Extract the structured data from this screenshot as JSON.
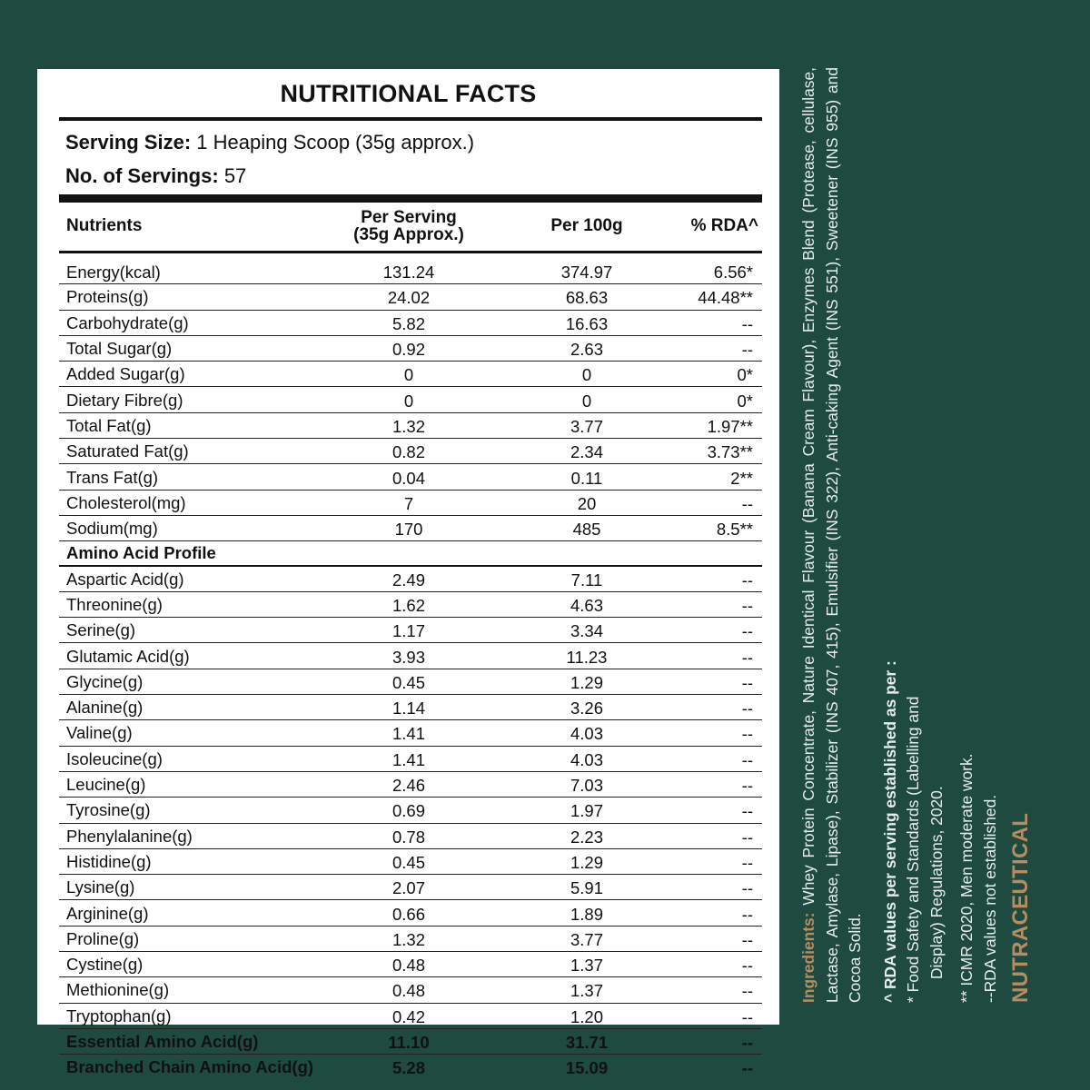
{
  "title": "NUTRITIONAL FACTS",
  "serving_size": {
    "label": "Serving Size:",
    "value": "1 Heaping Scoop (35g approx.)"
  },
  "servings": {
    "label": "No. of Servings:",
    "value": "57"
  },
  "headers": [
    "Nutrients",
    "Per Serving\n(35g Approx.)",
    "Per 100g",
    "% RDA^"
  ],
  "header_per_serving_line1": "Per Serving",
  "header_per_serving_line2": "(35g Approx.)",
  "rows": [
    [
      "Energy(kcal)",
      "131.24",
      "374.97",
      "6.56*"
    ],
    [
      "Proteins(g)",
      "24.02",
      "68.63",
      "44.48**"
    ],
    [
      "Carbohydrate(g)",
      "5.82",
      "16.63",
      "--"
    ],
    [
      "Total Sugar(g)",
      "0.92",
      "2.63",
      "--"
    ],
    [
      "Added Sugar(g)",
      "0",
      "0",
      "0*"
    ],
    [
      "Dietary Fibre(g)",
      "0",
      "0",
      "0*"
    ],
    [
      "Total Fat(g)",
      "1.32",
      "3.77",
      "1.97**"
    ],
    [
      "Saturated Fat(g)",
      "0.82",
      "2.34",
      "3.73**"
    ],
    [
      "Trans Fat(g)",
      "0.04",
      "0.11",
      "2**"
    ],
    [
      "Cholesterol(mg)",
      "7",
      "20",
      "--"
    ],
    [
      "Sodium(mg)",
      "170",
      "485",
      "8.5**"
    ]
  ],
  "amino_heading": "Amino Acid Profile",
  "amino_rows": [
    [
      "Aspartic Acid(g)",
      "2.49",
      "7.11",
      "--"
    ],
    [
      "Threonine(g)",
      "1.62",
      "4.63",
      "--"
    ],
    [
      "Serine(g)",
      "1.17",
      "3.34",
      "--"
    ],
    [
      "Glutamic Acid(g)",
      "3.93",
      "11.23",
      "--"
    ],
    [
      "Glycine(g)",
      "0.45",
      "1.29",
      "--"
    ],
    [
      "Alanine(g)",
      "1.14",
      "3.26",
      "--"
    ],
    [
      "Valine(g)",
      "1.41",
      "4.03",
      "--"
    ],
    [
      "Isoleucine(g)",
      "1.41",
      "4.03",
      "--"
    ],
    [
      "Leucine(g)",
      "2.46",
      "7.03",
      "--"
    ],
    [
      "Tyrosine(g)",
      "0.69",
      "1.97",
      "--"
    ],
    [
      "Phenylalanine(g)",
      "0.78",
      "2.23",
      "--"
    ],
    [
      "Histidine(g)",
      "0.45",
      "1.29",
      "--"
    ],
    [
      "Lysine(g)",
      "2.07",
      "5.91",
      "--"
    ],
    [
      "Arginine(g)",
      "0.66",
      "1.89",
      "--"
    ],
    [
      "Proline(g)",
      "1.32",
      "3.77",
      "--"
    ],
    [
      "Cystine(g)",
      "0.48",
      "1.37",
      "--"
    ],
    [
      "Methionine(g)",
      "0.48",
      "1.37",
      "--"
    ],
    [
      "Tryptophan(g)",
      "0.42",
      "1.20",
      "--"
    ]
  ],
  "summary_rows": [
    [
      "Essential Amino Acid(g)",
      "11.10",
      "31.71",
      "--"
    ],
    [
      "Branched Chain Amino Acid(g)",
      "5.28",
      "15.09",
      "--"
    ]
  ],
  "side": {
    "ingredients_label": "Ingredients:",
    "ingredients": "Whey Protein Concentrate, Nature Identical Flavour (Banana Cream Flavour), Enzymes Blend (Protease, cellulase, Lactase, Amylase, Lipase), Stabilizer (INS 407, 415), Emulsifier (INS 322), Anti-caking Agent (INS 551), Sweetener (INS 955) and Cocoa Solid.",
    "rda_heading": "^ RDA values per serving established as per :",
    "rda_note1": "* Food Safety and Standards (Labelling and",
    "rda_note1b": "Display) Regulations, 2020.",
    "rda_note2": "** ICMR 2020, Men moderate work.",
    "rda_note3": "--RDA values not established.",
    "brand": "NUTRACEUTICAL"
  },
  "colors": {
    "background": "#1f4a40",
    "accent": "#b58d62",
    "panel": "#ffffff"
  }
}
